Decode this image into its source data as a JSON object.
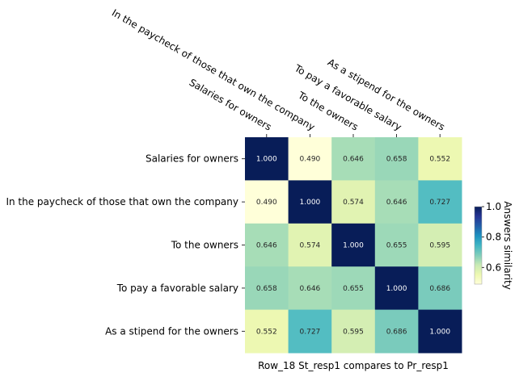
{
  "chart_data": {
    "type": "heatmap",
    "row_labels": [
      "Salaries for owners",
      "In the paycheck of those that own the company",
      "To the owners",
      "To pay a favorable salary",
      "As a stipend for the owners"
    ],
    "col_labels": [
      "Salaries for owners",
      "In the paycheck of those that own the company",
      "To the owners",
      "To pay a favorable salary",
      "As a stipend for the owners"
    ],
    "values": [
      [
        1.0,
        0.49,
        0.646,
        0.658,
        0.552
      ],
      [
        0.49,
        1.0,
        0.574,
        0.646,
        0.727
      ],
      [
        0.646,
        0.574,
        1.0,
        0.655,
        0.595
      ],
      [
        0.658,
        0.646,
        0.655,
        1.0,
        0.686
      ],
      [
        0.552,
        0.727,
        0.595,
        0.686,
        1.0
      ]
    ],
    "value_format": "0.000",
    "xlabel": "Row_18 St_resp1 compares to Pr_resp1",
    "colorbar": {
      "label": "Answers similarity",
      "range": [
        0.49,
        1.0
      ],
      "ticks": [
        0.6,
        0.8,
        1.0
      ],
      "tick_labels": [
        "0.6",
        "0.8",
        "1.0"
      ],
      "colormap": "YlGnBu"
    },
    "x_tick_position": "top",
    "x_tick_rotation": "-30deg",
    "grid": false
  }
}
